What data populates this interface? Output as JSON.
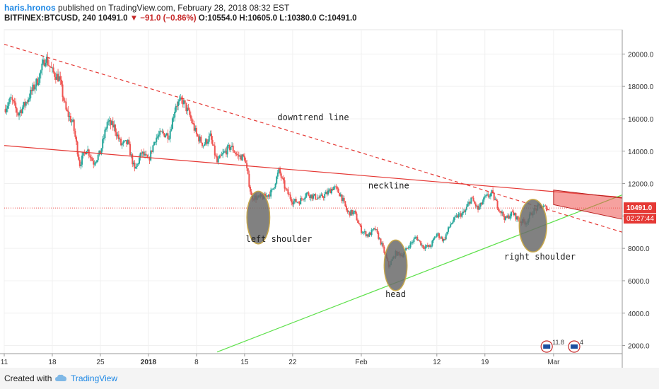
{
  "header": {
    "author": "haris.hronos",
    "published_text": "published on TradingView.com, February 28, 2018 08:32 EST",
    "symbol": "BITFINEX:BTCUSD, 240",
    "last": "10491.0",
    "change": "−91.0 (−0.86%)",
    "ohlc": "O:10554.0 H:10605.0 L:10380.0 C:10491.0"
  },
  "footer": {
    "created_with": "Created with",
    "brand": "TradingView"
  },
  "colors": {
    "up": "#26a69a",
    "down": "#ef5350",
    "neckline": "#e53935",
    "downtrend": "#e53935",
    "support": "#5de04a",
    "ellipse": "#6b6b6b",
    "ellipse_stroke": "#c8a84a"
  },
  "chart_data": {
    "type": "candlestick",
    "y_axis": {
      "ticks": [
        2000,
        4000,
        6000,
        8000,
        10000,
        12000,
        14000,
        16000,
        18000,
        20000
      ],
      "tick_labels": [
        "2000.0",
        "4000.0",
        "6000.0",
        "8000.0",
        "10000.0",
        "12000.0",
        "14000.0",
        "16000.0",
        "18000.0",
        "20000.0"
      ],
      "range": [
        1500,
        21500
      ]
    },
    "x_axis": {
      "ticks": [
        "2017-12-11",
        "2017-12-18",
        "2017-12-25",
        "2018-01-01",
        "2018-01-08",
        "2018-01-15",
        "2018-01-22",
        "2018-02-01",
        "2018-02-12",
        "2018-02-19",
        "2018-03-01"
      ],
      "tick_labels": [
        "11",
        "18",
        "25",
        "2018",
        "8",
        "15",
        "22",
        "Feb",
        "12",
        "19",
        "Mar"
      ],
      "range": [
        "2017-12-11",
        "2018-03-11"
      ]
    },
    "price_path": [
      [
        "2017-12-11",
        16600
      ],
      [
        "2017-12-12",
        17200
      ],
      [
        "2017-12-13",
        16300
      ],
      [
        "2017-12-14",
        16900
      ],
      [
        "2017-12-15",
        17700
      ],
      [
        "2017-12-16",
        18500
      ],
      [
        "2017-12-17",
        19800
      ],
      [
        "2017-12-18",
        18900
      ],
      [
        "2017-12-19",
        18500
      ],
      [
        "2017-12-20",
        16500
      ],
      [
        "2017-12-21",
        15700
      ],
      [
        "2017-12-22",
        13200
      ],
      [
        "2017-12-23",
        14200
      ],
      [
        "2017-12-24",
        13300
      ],
      [
        "2017-12-25",
        13900
      ],
      [
        "2017-12-26",
        15800
      ],
      [
        "2017-12-27",
        15500
      ],
      [
        "2017-12-28",
        14400
      ],
      [
        "2017-12-29",
        14500
      ],
      [
        "2017-12-30",
        12800
      ],
      [
        "2017-12-31",
        13900
      ],
      [
        "2018-01-01",
        13400
      ],
      [
        "2018-01-02",
        14800
      ],
      [
        "2018-01-03",
        15100
      ],
      [
        "2018-01-04",
        15000
      ],
      [
        "2018-01-05",
        16900
      ],
      [
        "2018-01-06",
        17100
      ],
      [
        "2018-01-07",
        16200
      ],
      [
        "2018-01-08",
        15000
      ],
      [
        "2018-01-09",
        14400
      ],
      [
        "2018-01-10",
        14900
      ],
      [
        "2018-01-11",
        13300
      ],
      [
        "2018-01-12",
        13900
      ],
      [
        "2018-01-13",
        14300
      ],
      [
        "2018-01-14",
        13700
      ],
      [
        "2018-01-15",
        13600
      ],
      [
        "2018-01-16",
        11200
      ],
      [
        "2018-01-17",
        11100
      ],
      [
        "2018-01-18",
        11200
      ],
      [
        "2018-01-19",
        11500
      ],
      [
        "2018-01-20",
        12800
      ],
      [
        "2018-01-21",
        11600
      ],
      [
        "2018-01-22",
        10900
      ],
      [
        "2018-01-23",
        10900
      ],
      [
        "2018-01-24",
        11400
      ],
      [
        "2018-01-25",
        11200
      ],
      [
        "2018-01-26",
        11100
      ],
      [
        "2018-01-27",
        11400
      ],
      [
        "2018-01-28",
        11800
      ],
      [
        "2018-01-29",
        11300
      ],
      [
        "2018-01-30",
        10200
      ],
      [
        "2018-01-31",
        10200
      ],
      [
        "2018-02-01",
        9100
      ],
      [
        "2018-02-02",
        8800
      ],
      [
        "2018-02-03",
        9200
      ],
      [
        "2018-02-04",
        8200
      ],
      [
        "2018-02-05",
        6900
      ],
      [
        "2018-02-06",
        7700
      ],
      [
        "2018-02-07",
        7600
      ],
      [
        "2018-02-08",
        8200
      ],
      [
        "2018-02-09",
        8700
      ],
      [
        "2018-02-10",
        8100
      ],
      [
        "2018-02-11",
        8100
      ],
      [
        "2018-02-12",
        8900
      ],
      [
        "2018-02-13",
        8500
      ],
      [
        "2018-02-14",
        9500
      ],
      [
        "2018-02-15",
        10000
      ],
      [
        "2018-02-16",
        10200
      ],
      [
        "2018-02-17",
        11100
      ],
      [
        "2018-02-18",
        10400
      ],
      [
        "2018-02-19",
        11100
      ],
      [
        "2018-02-20",
        11400
      ],
      [
        "2018-02-21",
        10500
      ],
      [
        "2018-02-22",
        9800
      ],
      [
        "2018-02-23",
        10200
      ],
      [
        "2018-02-24",
        9700
      ],
      [
        "2018-02-25",
        9600
      ],
      [
        "2018-02-26",
        10300
      ],
      [
        "2018-02-27",
        10600
      ],
      [
        "2018-02-28",
        10491
      ]
    ],
    "last_price": {
      "value": 10491,
      "label": "10491.0",
      "countdown": "02:27:44"
    },
    "trendlines": [
      {
        "name": "downtrend line",
        "style": "dashed",
        "from": [
          "2017-12-11",
          20600
        ],
        "to": [
          "2018-03-11",
          9000
        ]
      },
      {
        "name": "neckline",
        "style": "solid",
        "from": [
          "2017-12-11",
          14350
        ],
        "to": [
          "2018-03-11",
          11150
        ]
      },
      {
        "name": "support",
        "style": "solid",
        "from": [
          "2018-01-11",
          1600
        ],
        "to": [
          "2018-03-11",
          11300
        ]
      }
    ],
    "triangle_projection": [
      [
        "2018-03-01",
        11600
      ],
      [
        "2018-03-11",
        11100
      ],
      [
        "2018-03-11",
        9800
      ],
      [
        "2018-03-01",
        10700
      ]
    ],
    "annotations": [
      {
        "label": "downtrend line",
        "at": [
          "2018-01-25",
          15900
        ]
      },
      {
        "label": "neckline",
        "at": [
          "2018-02-05",
          11700
        ]
      },
      {
        "label": "left shoulder",
        "at": [
          "2018-01-20",
          8400
        ]
      },
      {
        "label": "head",
        "at": [
          "2018-02-06",
          5000
        ]
      },
      {
        "label": "right shoulder",
        "at": [
          "2018-02-27",
          7300
        ]
      }
    ],
    "pattern_markers": [
      {
        "name": "left shoulder",
        "at": [
          "2018-01-17",
          9900
        ],
        "span_days": 2.0,
        "span_value": 2600
      },
      {
        "name": "head",
        "at": [
          "2018-02-06",
          6950
        ],
        "span_days": 2.0,
        "span_value": 2500
      },
      {
        "name": "right shoulder",
        "at": [
          "2018-02-26",
          9400
        ],
        "span_days": 2.4,
        "span_value": 2600
      }
    ],
    "event_badges": [
      {
        "at": "2018-02-28",
        "label": "11.8"
      },
      {
        "at": "2018-03-04",
        "label": "4"
      }
    ]
  }
}
